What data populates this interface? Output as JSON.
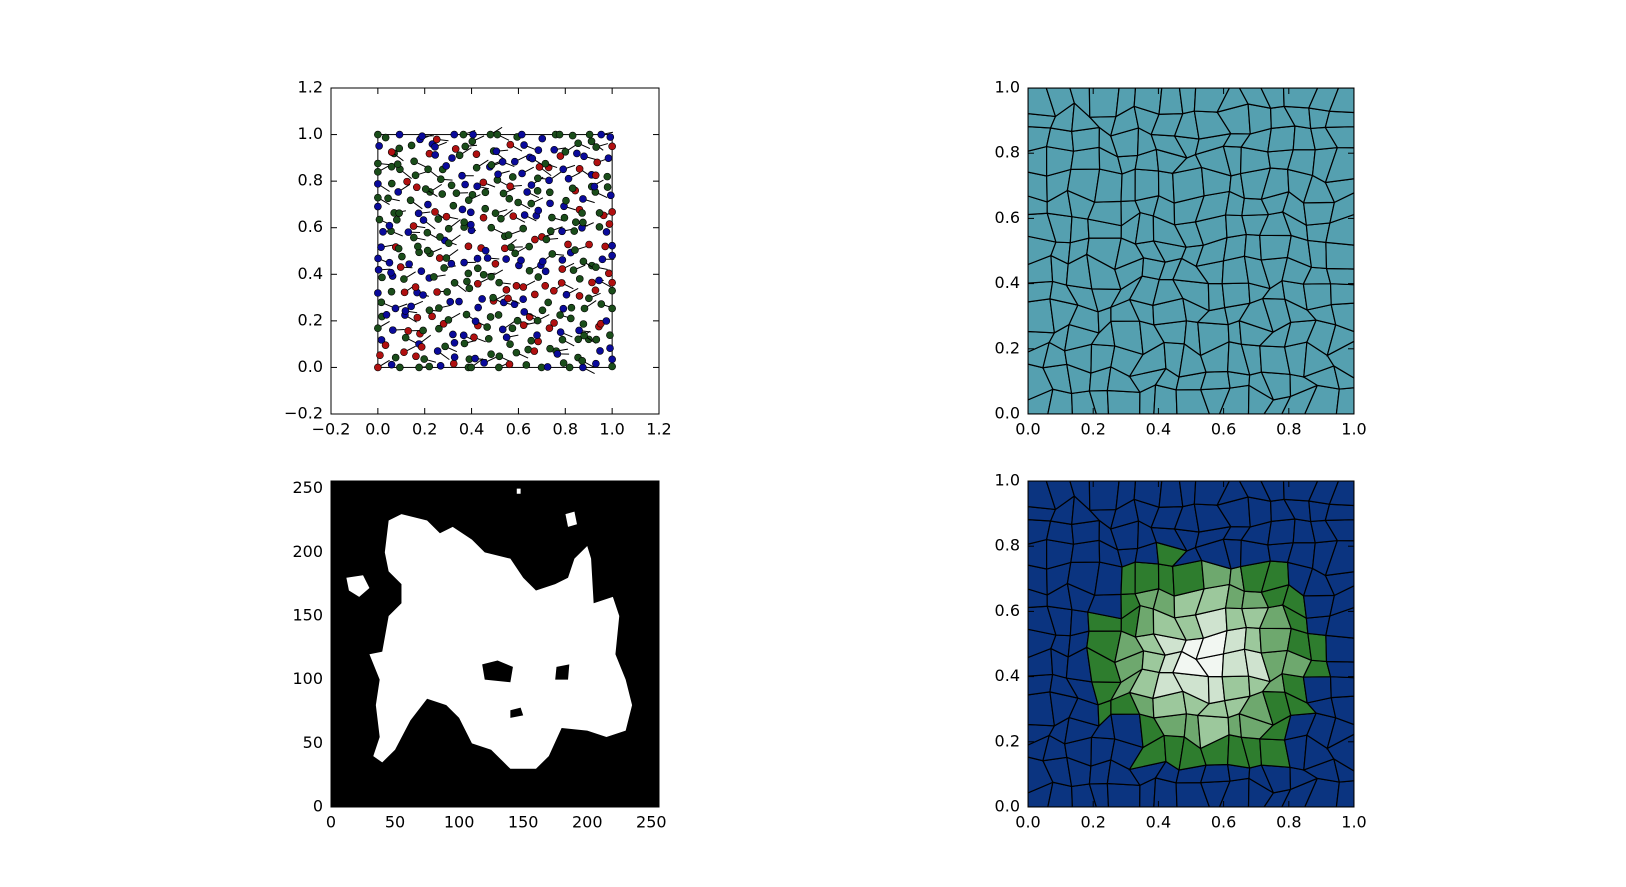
{
  "chart_data": [
    {
      "type": "scatter",
      "xlim": [
        -0.2,
        1.2
      ],
      "ylim": [
        -0.2,
        1.2
      ],
      "xticks": [
        {
          "value": -0.2,
          "label": "−0.2"
        },
        {
          "value": 0,
          "label": "0.0"
        },
        0.2,
        0.4,
        0.6,
        0.8,
        {
          "value": 1,
          "label": "1.0"
        },
        1.2
      ],
      "yticks": [
        {
          "value": -0.2,
          "label": "−0.2"
        },
        {
          "value": 0,
          "label": "0.0"
        },
        0.2,
        0.4,
        0.6,
        0.8,
        {
          "value": 1,
          "label": "1.0"
        },
        1.2
      ]
    },
    {
      "type": "voronoi",
      "color": "#55a0b0",
      "xlim": [
        0,
        1
      ],
      "ylim": [
        0,
        1
      ],
      "xticks": [
        {
          "value": 0,
          "label": "0.0"
        },
        0.2,
        0.4,
        0.6,
        0.8,
        {
          "value": 1,
          "label": "1.0"
        }
      ],
      "yticks": [
        {
          "value": 0,
          "label": "0.0"
        },
        0.2,
        0.4,
        0.6,
        0.8,
        {
          "value": 1,
          "label": "1.0"
        }
      ]
    },
    {
      "type": "image",
      "xlim": [
        0,
        256
      ],
      "ylim": [
        0,
        256
      ],
      "xticks": [
        0,
        50,
        100,
        150,
        200,
        250
      ],
      "yticks": [
        0,
        50,
        100,
        150,
        200,
        250
      ]
    },
    {
      "type": "voronoi-elevation",
      "xlim": [
        0,
        1
      ],
      "ylim": [
        0,
        1
      ],
      "xticks": [
        {
          "value": 0,
          "label": "0.0"
        },
        0.2,
        0.4,
        0.6,
        0.8,
        {
          "value": 1,
          "label": "1.0"
        }
      ],
      "yticks": [
        {
          "value": 0,
          "label": "0.0"
        },
        0.2,
        0.4,
        0.6,
        0.8,
        {
          "value": 1,
          "label": "1.0"
        }
      ]
    }
  ]
}
